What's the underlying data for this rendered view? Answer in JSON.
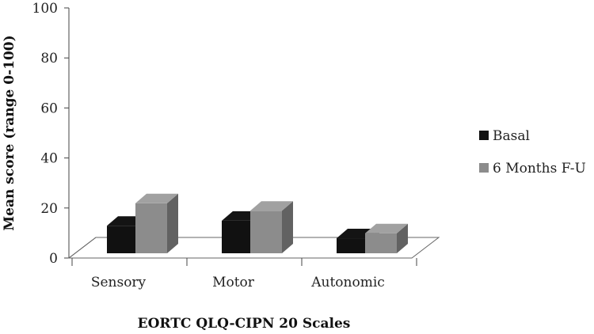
{
  "chart_data": {
    "type": "bar",
    "title": "",
    "xlabel": "EORTC QLQ-CIPN 20 Scales",
    "ylabel": "Mean score (range 0-100)",
    "ylim": [
      0,
      100
    ],
    "yticks": [
      0,
      20,
      40,
      60,
      80,
      100
    ],
    "categories": [
      "Sensory",
      "Motor",
      "Autonomic"
    ],
    "series": [
      {
        "name": "Basal",
        "values": [
          11,
          13,
          6
        ],
        "color": "#111111"
      },
      {
        "name": "6 Months F-U",
        "values": [
          20,
          17,
          8
        ],
        "color": "#8c8c8c"
      }
    ],
    "legend_position": "right",
    "grid": false,
    "style": "3d-bar"
  }
}
